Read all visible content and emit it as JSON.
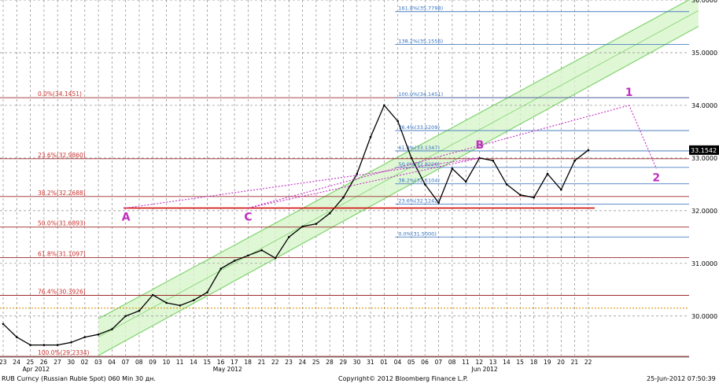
{
  "footer": {
    "security": "RUB Curncy (Russian Ruble Spot) 060 Min 30 дн.",
    "copyright": "Copyright© 2012 Bloomberg Finance L.P.",
    "timestamp": "25-Jun-2012 07:50:39"
  },
  "colors": {
    "price": "#000000",
    "grid": "#8a8a8a",
    "fib_left": "#c8322e",
    "fib_right": "#2f6fc0",
    "fib_left_line": "#9c2a2a",
    "fib_right_line": "#4a7fc1",
    "channel": "#7fd46d",
    "channel_fill": "#d8f5cc",
    "wave": "#c030c0",
    "support": "#d00000",
    "dotted": "#d98c00",
    "last_tag_bg": "#000000"
  },
  "chart_data": {
    "type": "line",
    "title": "",
    "ylim": [
      29.25,
      36.0
    ],
    "y_scale": "linear",
    "grid": true,
    "y_ticks": [
      "36.0000",
      "35.0000",
      "34.0000",
      "33.0000",
      "32.0000",
      "31.0000",
      "30.0000"
    ],
    "y_tick_values": [
      36.0,
      35.0,
      34.0,
      33.0,
      32.0,
      31.0,
      30.0
    ],
    "x_ticks": [
      "23",
      "24",
      "25",
      "26",
      "27",
      "30",
      "02",
      "03",
      "04",
      "07",
      "08",
      "09",
      "10",
      "11",
      "14",
      "15",
      "16",
      "17",
      "18",
      "21",
      "22",
      "23",
      "24",
      "25",
      "28",
      "29",
      "30",
      "31",
      "01",
      "04",
      "05",
      "06",
      "07",
      "08",
      "11",
      "12",
      "13",
      "14",
      "15",
      "18",
      "19",
      "20",
      "21",
      "22"
    ],
    "month_labels": [
      {
        "text": "Apr 2012",
        "at": "25"
      },
      {
        "text": "May 2012",
        "at": "16"
      },
      {
        "text": "Jun 2012",
        "at": "12"
      }
    ],
    "last_value": "33.1542",
    "series": [
      {
        "values": [
          [
            "23",
            29.85
          ],
          [
            "24",
            29.6
          ],
          [
            "25",
            29.45
          ],
          [
            "26",
            29.45
          ],
          [
            "27",
            29.45
          ],
          [
            "30",
            29.5
          ],
          [
            "02",
            29.6
          ],
          [
            "03",
            29.65
          ],
          [
            "04",
            29.75
          ],
          [
            "07",
            30.0
          ],
          [
            "08",
            30.1
          ],
          [
            "09",
            30.4
          ],
          [
            "10",
            30.25
          ],
          [
            "11",
            30.2
          ],
          [
            "14",
            30.3
          ],
          [
            "15",
            30.45
          ],
          [
            "16",
            30.9
          ],
          [
            "17",
            31.05
          ],
          [
            "18",
            31.15
          ],
          [
            "21",
            31.25
          ],
          [
            "22",
            31.1
          ],
          [
            "23",
            31.5
          ],
          [
            "24",
            31.7
          ],
          [
            "25",
            31.75
          ],
          [
            "28",
            31.95
          ],
          [
            "29",
            32.25
          ],
          [
            "30",
            32.7
          ],
          [
            "31",
            33.4
          ],
          [
            "01",
            34.0
          ],
          [
            "04",
            33.7
          ],
          [
            "05",
            33.0
          ],
          [
            "06",
            32.5
          ],
          [
            "07",
            32.15
          ],
          [
            "08",
            32.8
          ],
          [
            "11",
            32.55
          ],
          [
            "12",
            33.0
          ],
          [
            "13",
            32.95
          ],
          [
            "14",
            32.5
          ],
          [
            "15",
            32.3
          ],
          [
            "18",
            32.25
          ],
          [
            "19",
            32.7
          ],
          [
            "20",
            32.4
          ],
          [
            "21",
            32.95
          ],
          [
            "22",
            33.15
          ]
        ]
      }
    ],
    "fib_left": [
      {
        "label": "0.0%(34.1451)",
        "value": 34.1451
      },
      {
        "label": "23.6%(32.9860)",
        "value": 32.986
      },
      {
        "label": "38.2%(32.2688)",
        "value": 32.2688
      },
      {
        "label": "50.0%(31.6893)",
        "value": 31.6893
      },
      {
        "label": "61.8%(31.1097)",
        "value": 31.1097
      },
      {
        "label": "76.4%(30.3926)",
        "value": 30.3926
      },
      {
        "label": "100.0%(29.2334)",
        "value": 29.2334
      }
    ],
    "fib_right": [
      {
        "label": "161.8%(35.7798)",
        "value": 35.7798
      },
      {
        "label": "138.2%(35.1556)",
        "value": 35.1556
      },
      {
        "label": "100.0%(34.1451)",
        "value": 34.1451
      },
      {
        "label": "76.4%(33.5209)",
        "value": 33.5209
      },
      {
        "label": "61.8%(33.1347)",
        "value": 33.1347
      },
      {
        "label": "50.0%(32.8226)",
        "value": 32.8226
      },
      {
        "label": "38.2%(32.5104)",
        "value": 32.5104
      },
      {
        "label": "23.6%(32.1242)",
        "value": 32.1242
      },
      {
        "label": "0.0%(31.5000)",
        "value": 31.5
      }
    ],
    "dotted_level": 30.15,
    "support_line": {
      "value": 32.05,
      "from": "08",
      "to": "22"
    },
    "channel": {
      "lower": [
        [
          "03",
          29.25
        ],
        [
          "22",
          33.9
        ]
      ],
      "upper": [
        [
          "03",
          29.95
        ],
        [
          "22",
          35.0
        ]
      ],
      "band_height": 0.9
    },
    "wave_points": [
      {
        "label": "A",
        "at": "07",
        "value": 32.05
      },
      {
        "label": "B",
        "at": "12",
        "value": 33.0
      },
      {
        "label": "C",
        "at": "18",
        "value": 32.05
      },
      {
        "label": "1",
        "at": "22+3",
        "value": 34.0
      },
      {
        "label": "2",
        "at": "22+5",
        "value": 32.8
      }
    ],
    "annotations": [
      "A",
      "B",
      "C",
      "1",
      "2"
    ]
  }
}
